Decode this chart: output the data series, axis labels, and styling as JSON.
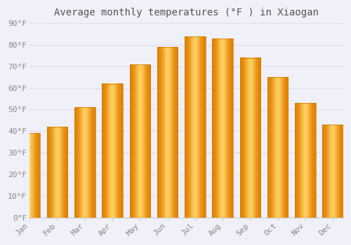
{
  "title": "Average monthly temperatures (°F ) in Xiaogan",
  "months": [
    "Jan",
    "Feb",
    "Mar",
    "Apr",
    "May",
    "Jun",
    "Jul",
    "Aug",
    "Sep",
    "Oct",
    "Nov",
    "Dec"
  ],
  "values": [
    39,
    42,
    51,
    62,
    71,
    79,
    84,
    83,
    74,
    65,
    53,
    43
  ],
  "bar_color_main": "#FFB020",
  "bar_color_edge": "#E08000",
  "bar_color_light": "#FFD060",
  "background_color": "#f0f0f8",
  "plot_bg_color": "#f0f0f8",
  "ylim": [
    0,
    90
  ],
  "yticks": [
    0,
    10,
    20,
    30,
    40,
    50,
    60,
    70,
    80,
    90
  ],
  "ytick_labels": [
    "0°F",
    "10°F",
    "20°F",
    "30°F",
    "40°F",
    "50°F",
    "60°F",
    "70°F",
    "80°F",
    "90°F"
  ],
  "grid_color": "#ddddee",
  "title_fontsize": 10,
  "tick_fontsize": 8,
  "bar_width": 0.75
}
